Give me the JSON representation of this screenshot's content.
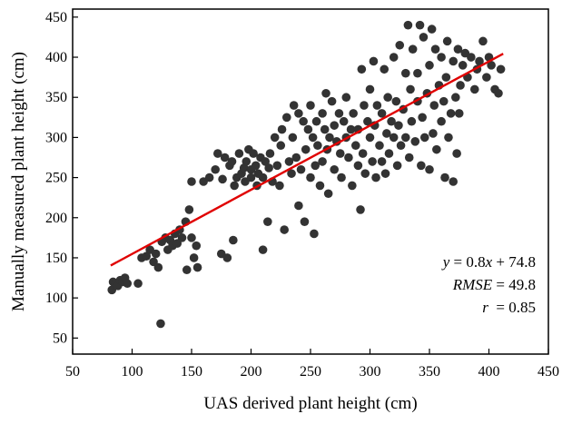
{
  "chart_data": {
    "type": "scatter",
    "title": "",
    "xlabel": "UAS derived plant height (cm)",
    "ylabel": "Manually measured plant height (cm)",
    "xlim": [
      50,
      450
    ],
    "ylim": [
      30,
      460
    ],
    "xticks": [
      50,
      100,
      150,
      200,
      250,
      300,
      350,
      400,
      450
    ],
    "yticks": [
      50,
      100,
      150,
      200,
      250,
      300,
      350,
      400,
      450
    ],
    "grid": false,
    "legend": "none",
    "point_color": "#333333",
    "fit_line_color": "#e00000",
    "fit_line": {
      "slope": 0.8,
      "intercept": 74.8,
      "x_range": [
        82,
        412
      ]
    },
    "stats": {
      "equation": {
        "y": "y",
        "equals_slope": " = 0.8",
        "x": "x",
        "plus_intercept": " + 74.8"
      },
      "rmse": {
        "label": "RMSE",
        "value": " = 49.8"
      },
      "r": {
        "label": "r",
        "value": "  = 0.85"
      }
    },
    "points": [
      [
        83,
        110
      ],
      [
        84,
        120
      ],
      [
        86,
        118
      ],
      [
        88,
        115
      ],
      [
        90,
        122
      ],
      [
        92,
        120
      ],
      [
        94,
        125
      ],
      [
        96,
        118
      ],
      [
        105,
        118
      ],
      [
        108,
        150
      ],
      [
        112,
        152
      ],
      [
        115,
        160
      ],
      [
        118,
        145
      ],
      [
        120,
        155
      ],
      [
        122,
        138
      ],
      [
        124,
        68
      ],
      [
        125,
        170
      ],
      [
        128,
        175
      ],
      [
        130,
        160
      ],
      [
        132,
        172
      ],
      [
        134,
        165
      ],
      [
        136,
        180
      ],
      [
        138,
        168
      ],
      [
        140,
        185
      ],
      [
        142,
        175
      ],
      [
        145,
        195
      ],
      [
        146,
        135
      ],
      [
        148,
        210
      ],
      [
        150,
        175
      ],
      [
        150,
        245
      ],
      [
        152,
        150
      ],
      [
        154,
        165
      ],
      [
        155,
        138
      ],
      [
        160,
        245
      ],
      [
        165,
        250
      ],
      [
        170,
        260
      ],
      [
        172,
        280
      ],
      [
        175,
        155
      ],
      [
        176,
        248
      ],
      [
        178,
        275
      ],
      [
        180,
        150
      ],
      [
        182,
        265
      ],
      [
        184,
        270
      ],
      [
        185,
        172
      ],
      [
        186,
        240
      ],
      [
        188,
        250
      ],
      [
        190,
        280
      ],
      [
        192,
        255
      ],
      [
        194,
        262
      ],
      [
        195,
        245
      ],
      [
        196,
        270
      ],
      [
        198,
        285
      ],
      [
        200,
        260
      ],
      [
        200,
        250
      ],
      [
        202,
        280
      ],
      [
        204,
        265
      ],
      [
        205,
        240
      ],
      [
        206,
        255
      ],
      [
        208,
        275
      ],
      [
        210,
        250
      ],
      [
        210,
        160
      ],
      [
        212,
        270
      ],
      [
        214,
        195
      ],
      [
        215,
        262
      ],
      [
        216,
        280
      ],
      [
        218,
        245
      ],
      [
        220,
        300
      ],
      [
        222,
        265
      ],
      [
        224,
        240
      ],
      [
        225,
        290
      ],
      [
        226,
        310
      ],
      [
        228,
        185
      ],
      [
        230,
        325
      ],
      [
        232,
        270
      ],
      [
        234,
        255
      ],
      [
        235,
        300
      ],
      [
        236,
        340
      ],
      [
        238,
        275
      ],
      [
        240,
        330
      ],
      [
        240,
        215
      ],
      [
        242,
        260
      ],
      [
        244,
        320
      ],
      [
        245,
        195
      ],
      [
        246,
        285
      ],
      [
        248,
        310
      ],
      [
        250,
        250
      ],
      [
        250,
        340
      ],
      [
        252,
        300
      ],
      [
        253,
        180
      ],
      [
        254,
        265
      ],
      [
        255,
        320
      ],
      [
        256,
        290
      ],
      [
        258,
        240
      ],
      [
        260,
        330
      ],
      [
        260,
        270
      ],
      [
        262,
        310
      ],
      [
        263,
        355
      ],
      [
        264,
        285
      ],
      [
        265,
        230
      ],
      [
        266,
        300
      ],
      [
        268,
        345
      ],
      [
        270,
        315
      ],
      [
        270,
        260
      ],
      [
        272,
        295
      ],
      [
        274,
        330
      ],
      [
        275,
        280
      ],
      [
        276,
        250
      ],
      [
        278,
        320
      ],
      [
        280,
        300
      ],
      [
        280,
        350
      ],
      [
        282,
        275
      ],
      [
        284,
        310
      ],
      [
        285,
        240
      ],
      [
        286,
        330
      ],
      [
        288,
        290
      ],
      [
        290,
        265
      ],
      [
        290,
        310
      ],
      [
        292,
        210
      ],
      [
        293,
        385
      ],
      [
        294,
        280
      ],
      [
        295,
        340
      ],
      [
        296,
        255
      ],
      [
        298,
        320
      ],
      [
        300,
        300
      ],
      [
        300,
        360
      ],
      [
        302,
        270
      ],
      [
        303,
        395
      ],
      [
        304,
        315
      ],
      [
        305,
        250
      ],
      [
        306,
        340
      ],
      [
        308,
        290
      ],
      [
        310,
        330
      ],
      [
        310,
        270
      ],
      [
        312,
        385
      ],
      [
        313,
        255
      ],
      [
        314,
        305
      ],
      [
        315,
        350
      ],
      [
        316,
        280
      ],
      [
        318,
        320
      ],
      [
        320,
        300
      ],
      [
        320,
        400
      ],
      [
        322,
        345
      ],
      [
        323,
        265
      ],
      [
        324,
        315
      ],
      [
        325,
        415
      ],
      [
        326,
        290
      ],
      [
        328,
        335
      ],
      [
        330,
        380
      ],
      [
        330,
        300
      ],
      [
        332,
        440
      ],
      [
        333,
        275
      ],
      [
        334,
        360
      ],
      [
        335,
        320
      ],
      [
        336,
        410
      ],
      [
        338,
        295
      ],
      [
        340,
        345
      ],
      [
        340,
        380
      ],
      [
        342,
        440
      ],
      [
        343,
        265
      ],
      [
        344,
        325
      ],
      [
        345,
        425
      ],
      [
        346,
        300
      ],
      [
        348,
        355
      ],
      [
        350,
        390
      ],
      [
        350,
        260
      ],
      [
        352,
        435
      ],
      [
        353,
        305
      ],
      [
        354,
        340
      ],
      [
        355,
        410
      ],
      [
        356,
        285
      ],
      [
        358,
        365
      ],
      [
        360,
        320
      ],
      [
        360,
        400
      ],
      [
        362,
        345
      ],
      [
        363,
        250
      ],
      [
        364,
        375
      ],
      [
        365,
        420
      ],
      [
        366,
        300
      ],
      [
        368,
        330
      ],
      [
        370,
        395
      ],
      [
        370,
        245
      ],
      [
        372,
        350
      ],
      [
        373,
        280
      ],
      [
        374,
        410
      ],
      [
        375,
        330
      ],
      [
        376,
        365
      ],
      [
        378,
        390
      ],
      [
        380,
        405
      ],
      [
        382,
        375
      ],
      [
        385,
        400
      ],
      [
        388,
        360
      ],
      [
        390,
        385
      ],
      [
        392,
        395
      ],
      [
        395,
        420
      ],
      [
        398,
        375
      ],
      [
        400,
        400
      ],
      [
        402,
        390
      ],
      [
        405,
        360
      ],
      [
        408,
        355
      ],
      [
        410,
        385
      ]
    ]
  }
}
